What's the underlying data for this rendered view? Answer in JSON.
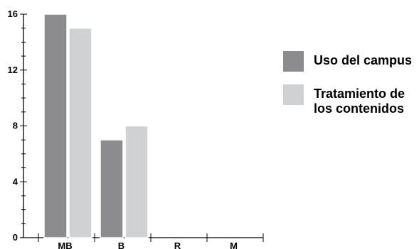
{
  "chart_data": {
    "type": "bar",
    "categories": [
      "MB",
      "B",
      "R",
      "M"
    ],
    "series": [
      {
        "name": "Uso del campus",
        "values": [
          16,
          7,
          0,
          0
        ],
        "color": "#8c8c8f"
      },
      {
        "name": "Tratamiento de los contenidos",
        "values": [
          15,
          8,
          0,
          0
        ],
        "color": "#d0d1d3"
      }
    ],
    "ylim": [
      0,
      16
    ],
    "yticks": [
      "0",
      "4",
      "8",
      "12",
      "16"
    ],
    "grid": false,
    "legend_placement": "right"
  },
  "legend": {
    "items": [
      {
        "label": "Uso del campus",
        "color": "#8c8c8f"
      },
      {
        "label": "Tratamiento de los contenidos",
        "label_lines": [
          "Tratamiento de",
          "los contenidos"
        ],
        "color": "#d0d1d3"
      }
    ]
  }
}
